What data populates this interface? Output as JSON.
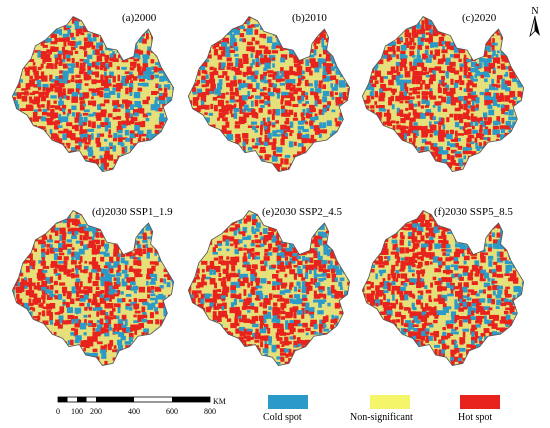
{
  "panels": [
    {
      "title": "(a)2000"
    },
    {
      "title": "(b)2010"
    },
    {
      "title": "(c)2020"
    },
    {
      "title": "(d)2030 SSP1_1.9"
    },
    {
      "title": "(e)2030  SSP2_4.5"
    },
    {
      "title": "(f)2030 SSP5_8.5"
    }
  ],
  "north_arrow": {
    "label": "N"
  },
  "scale_bar": {
    "ticks": [
      "0",
      "100",
      "200",
      "400",
      "600",
      "800"
    ],
    "unit": "KM"
  },
  "legend": [
    {
      "label": "Cold spot",
      "color": "#2b9ac8"
    },
    {
      "label": "Non-significant",
      "color": "#f5f56a"
    },
    {
      "label": "Hot spot",
      "color": "#e8231e"
    }
  ],
  "map_colors": {
    "cold": "#2b9ac8",
    "neutral": "#e6e07a",
    "hot": "#e8231e",
    "outline": "#555555"
  }
}
